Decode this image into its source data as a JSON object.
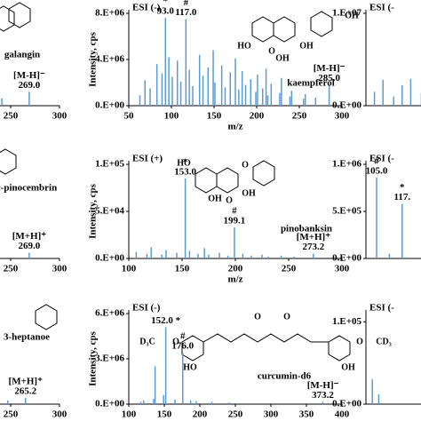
{
  "chart_data": [
    {
      "type": "stem",
      "title": "ESI (-)",
      "ylabel": "Intensity, cps",
      "xlabel": "m/z",
      "compound": "kaempferol",
      "structure_labels": [
        "HO",
        "OH",
        "OH",
        "O",
        "OH"
      ],
      "xlim": [
        50,
        300
      ],
      "xticks": [
        50,
        100,
        150,
        200,
        250,
        300
      ],
      "ylim": [
        0,
        8000000
      ],
      "yticks": [
        {
          "value": 0,
          "label": "0.E+00"
        },
        {
          "value": 4000000,
          "label": "4.E+06"
        },
        {
          "value": 8000000,
          "label": "8.E+06"
        }
      ],
      "color": "#5b9bd5",
      "x": [
        63,
        69,
        75,
        83,
        89,
        93.0,
        97,
        101,
        107,
        111,
        117.0,
        121,
        125,
        133,
        137,
        143,
        149,
        151,
        159,
        163,
        169,
        175,
        179,
        183,
        187,
        193,
        199,
        201,
        207,
        211,
        213,
        217,
        227,
        229,
        239,
        241,
        255,
        257,
        269,
        285.0
      ],
      "values": [
        900000,
        2200000,
        1500000,
        3600000,
        2800000,
        7600000,
        4200000,
        2500000,
        3900000,
        2100000,
        7500000,
        3100000,
        1700000,
        4400000,
        2600000,
        3300000,
        4800000,
        2000000,
        3500000,
        1600000,
        2900000,
        4100000,
        1400000,
        3000000,
        1800000,
        2300000,
        1200000,
        2700000,
        1500000,
        3200000,
        900000,
        1900000,
        1100000,
        2400000,
        800000,
        1300000,
        600000,
        1000000,
        700000,
        1800000
      ],
      "annotations": [
        {
          "x": 93.0,
          "lines": [
            "*",
            "93.0"
          ]
        },
        {
          "x": 117.0,
          "lines": [
            "#",
            "117.0"
          ]
        },
        {
          "x": 285.0,
          "lines": [
            "[M-H]⁻",
            "285.0"
          ]
        }
      ]
    },
    {
      "type": "stem",
      "title": "ESI (+)",
      "ylabel": "Intensity, cps",
      "xlabel": "m/z",
      "compound": "pinobanksin",
      "structure_labels": [
        "HO",
        "O",
        "OH",
        "O",
        "OH"
      ],
      "xlim": [
        100,
        300
      ],
      "xticks": [
        100,
        150,
        200,
        250,
        300
      ],
      "ylim": [
        0,
        100000
      ],
      "yticks": [
        {
          "value": 0,
          "label": "0.E+00"
        },
        {
          "value": 50000,
          "label": "5.E+04"
        },
        {
          "value": 100000,
          "label": "1.E+05"
        }
      ],
      "color": "#5b9bd5",
      "x": [
        107,
        117,
        121,
        131,
        135,
        145,
        153.0,
        157,
        165,
        171,
        175,
        185,
        193,
        199.1,
        207,
        215,
        225,
        231,
        243,
        255,
        273.2
      ],
      "values": [
        7000,
        5000,
        12000,
        4000,
        9000,
        6000,
        85000,
        8000,
        5000,
        11000,
        4000,
        6000,
        3000,
        33000,
        5000,
        3000,
        4000,
        2000,
        3000,
        2000,
        5000
      ],
      "annotations": [
        {
          "x": 153.0,
          "lines": [
            "*",
            "153.0"
          ]
        },
        {
          "x": 199.1,
          "lines": [
            "#",
            "199.1"
          ]
        },
        {
          "x": 273.2,
          "lines": [
            "[M+H]⁺",
            "273.2"
          ]
        }
      ]
    },
    {
      "type": "stem",
      "title": "ESI (-)",
      "ylabel": "Intensity, cps",
      "xlabel": "m/z",
      "compound": "curcumin-d6",
      "structure_labels": [
        "O",
        "O",
        "D₃C",
        "O",
        "HO",
        "O",
        "CD₃",
        "OH"
      ],
      "xlim": [
        100,
        400
      ],
      "xticks": [
        100,
        150,
        200,
        250,
        300,
        350,
        400
      ],
      "ylim": [
        0,
        6000000
      ],
      "yticks": [
        {
          "value": 0,
          "label": "0.E+00"
        },
        {
          "value": 3000000,
          "label": "3.E+06"
        },
        {
          "value": 6000000,
          "label": "6.E+06"
        }
      ],
      "color": "#5b9bd5",
      "x": [
        117,
        121,
        135,
        137,
        149,
        152.0,
        165,
        176.0,
        187,
        195,
        217,
        241,
        373.2
      ],
      "values": [
        150000,
        250000,
        350000,
        2500000,
        600000,
        5100000,
        300000,
        3400000,
        250000,
        200000,
        150000,
        100000,
        150000
      ],
      "annotations": [
        {
          "x": 152.0,
          "lines": [
            "152.0 *"
          ]
        },
        {
          "x": 176.0,
          "lines": [
            "#",
            "176.0"
          ]
        },
        {
          "x": 373.2,
          "lines": [
            "[M-H]⁻",
            "373.2"
          ]
        }
      ]
    },
    {
      "type": "stem",
      "compound": "galangin",
      "xlim": [
        200,
        300
      ],
      "xticks": [
        250,
        300
      ],
      "ylim": [
        0,
        1
      ],
      "color": "#5b9bd5",
      "x": [
        215,
        241,
        269.0
      ],
      "values": [
        0.05,
        0.08,
        0.15
      ],
      "annotations": [
        {
          "x": 269.0,
          "lines": [
            "[M-H]⁻",
            "269.0"
          ]
        }
      ]
    },
    {
      "type": "stem",
      "compound": "c-pinocembrin",
      "xlim": [
        200,
        300
      ],
      "xticks": [
        250,
        300
      ],
      "ylim": [
        0,
        1
      ],
      "color": "#5b9bd5",
      "x": [
        233,
        269.0
      ],
      "values": [
        0.03,
        0.06
      ],
      "annotations": [
        {
          "x": 269.0,
          "lines": [
            "[M+H]⁺",
            "269.0"
          ]
        }
      ]
    },
    {
      "type": "stem",
      "compound": "3-heptanoe",
      "xlim": [
        200,
        300
      ],
      "xticks": [
        250,
        300
      ],
      "ylim": [
        0,
        1
      ],
      "color": "#5b9bd5",
      "x": [
        247,
        265.2
      ],
      "values": [
        0.04,
        0.07
      ],
      "annotations": [
        {
          "x": 265.2,
          "lines": [
            "[M+H]⁺",
            "265.2"
          ]
        }
      ]
    },
    {
      "type": "stem",
      "title": "ESI (-",
      "xlim": [
        100,
        200
      ],
      "ylim": [
        0,
        10000000
      ],
      "yticks": [
        {
          "value": 0,
          "label": "0.E+00"
        },
        {
          "value": 10000000,
          "label": "1.E+07"
        }
      ],
      "color": "#5b9bd5",
      "x": [
        104,
        108,
        113,
        117,
        121,
        126,
        131
      ],
      "values": [
        1500000,
        2800000,
        1000000,
        2200000,
        2900000,
        1300000,
        2100000
      ]
    },
    {
      "type": "stem",
      "title": "ESI (-",
      "xlim": [
        100,
        200
      ],
      "ylim": [
        0,
        1000000
      ],
      "yticks": [
        {
          "value": 0,
          "label": "0.E+00"
        },
        {
          "value": 500000,
          "label": "5.E+05"
        },
        {
          "value": 1000000,
          "label": "1.E+06"
        }
      ],
      "color": "#5b9bd5",
      "x": [
        105.0,
        111,
        117
      ],
      "values": [
        860000,
        50000,
        580000
      ],
      "annotations": [
        {
          "x": 105.0,
          "lines": [
            "#",
            "105.0"
          ]
        },
        {
          "x": 117,
          "lines": [
            "*",
            "117."
          ]
        }
      ]
    },
    {
      "type": "stem",
      "title": "ESI (-",
      "xlim": [
        100,
        200
      ],
      "ylim": [
        0,
        110000
      ],
      "yticks": [
        {
          "value": 0,
          "label": "0.E+00"
        },
        {
          "value": 100000,
          "label": "1.E+05"
        }
      ],
      "color": "#5b9bd5",
      "x": [
        103,
        106
      ],
      "values": [
        30000,
        12000
      ]
    }
  ]
}
